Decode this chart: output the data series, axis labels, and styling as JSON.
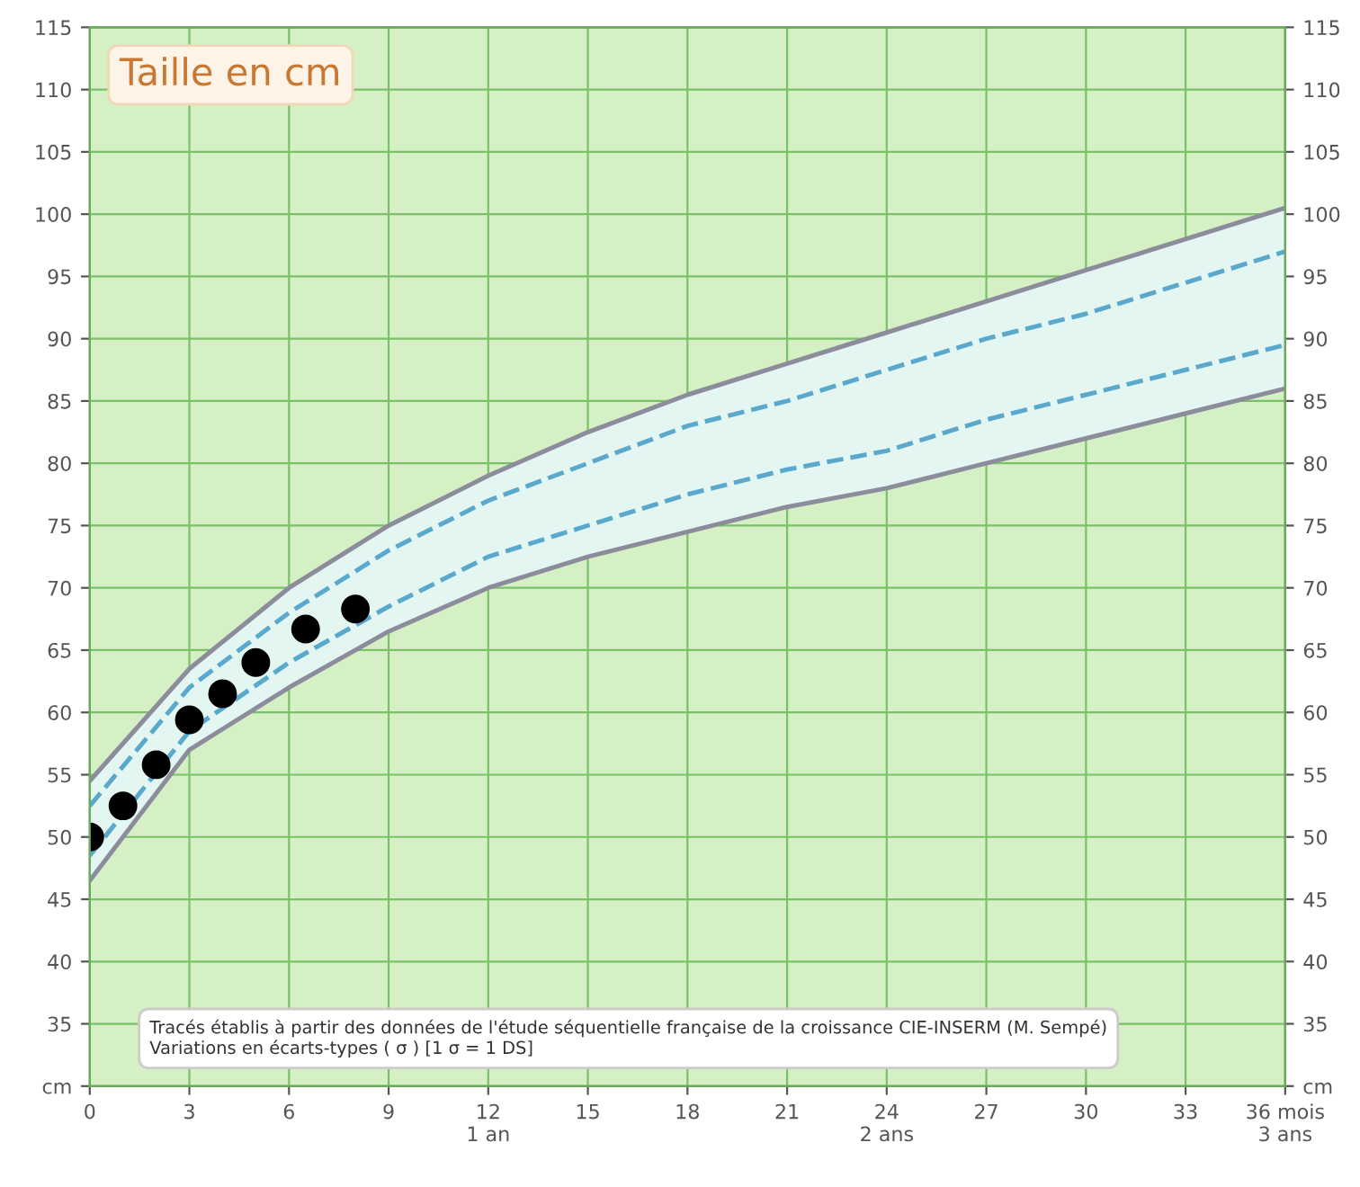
{
  "chart_data": {
    "type": "line",
    "title": "Taille en cm",
    "xlim": [
      0,
      36
    ],
    "xticks": [
      0,
      3,
      6,
      9,
      {
        "value": 12,
        "label": "12\n1 an"
      },
      15,
      18,
      21,
      {
        "value": 24,
        "label": "24\n2 ans"
      },
      27,
      30,
      33,
      {
        "value": 36,
        "label": "36 mois\n3 ans"
      }
    ],
    "ylim": [
      30,
      115
    ],
    "yticks": [
      {
        "value": 30,
        "label": "cm"
      },
      35,
      40,
      45,
      50,
      55,
      60,
      65,
      70,
      75,
      80,
      85,
      90,
      95,
      100,
      105,
      110,
      115
    ],
    "y2lim": [
      30,
      115
    ],
    "y2ticks": [
      {
        "value": 30,
        "label": "cm"
      },
      35,
      40,
      45,
      50,
      55,
      60,
      65,
      70,
      75,
      80,
      85,
      90,
      95,
      100,
      105,
      110,
      115
    ],
    "grid": true,
    "legend": false,
    "annotations": [
      "Tracés établis à partir des données de l'étude séquentielle française de la croissance CIE-INSERM (M. Sempé)\nVariations en écarts-types ( σ ) [1 σ = 1 DS]"
    ],
    "series": [
      {
        "line_style": "solid",
        "color": "#8c8c9c",
        "x": [
          0,
          3,
          6,
          9,
          12,
          15,
          18,
          21,
          24,
          27,
          30,
          33,
          36
        ],
        "values": [
          54.5,
          63.5,
          70,
          75,
          79,
          82.5,
          85.5,
          88,
          90.5,
          93,
          95.5,
          98,
          100.5
        ]
      },
      {
        "line_style": "solid",
        "color": "#8c8c9c",
        "x": [
          0,
          3,
          6,
          9,
          12,
          15,
          18,
          21,
          24,
          27,
          30,
          33,
          36
        ],
        "values": [
          46.5,
          57,
          62,
          66.5,
          70,
          72.5,
          74.5,
          76.5,
          78,
          80,
          82,
          84,
          86
        ]
      },
      {
        "line_style": "dashed",
        "color": "#5aa8cc",
        "x": [
          0,
          3,
          6,
          9,
          12,
          15,
          18,
          21,
          24,
          27,
          30,
          33,
          36
        ],
        "values": [
          52.5,
          62,
          68,
          73,
          77,
          80,
          83,
          85,
          87.5,
          90,
          92,
          94.5,
          97
        ],
        "lower": [
          46.5,
          57,
          62,
          66.5,
          70,
          72.5,
          74.5,
          76.5,
          78,
          80,
          82,
          84,
          86
        ],
        "upper": [
          54.5,
          63.5,
          70,
          75,
          79,
          82.5,
          85.5,
          88,
          90.5,
          93,
          95.5,
          98,
          100.5
        ]
      },
      {
        "line_style": "dashed",
        "color": "#5aa8cc",
        "x": [
          0,
          3,
          6,
          9,
          12,
          15,
          18,
          21,
          24,
          27,
          30,
          33,
          36
        ],
        "values": [
          48.5,
          58.5,
          64,
          68.5,
          72.5,
          75,
          77.5,
          79.5,
          81,
          83.5,
          85.5,
          87.5,
          89.5
        ]
      },
      {
        "type": "scatter",
        "marker": "circle",
        "color": "#000000",
        "x": [
          0,
          1,
          2,
          3,
          4,
          5,
          6.5,
          8
        ],
        "values": [
          50,
          52.5,
          55.8,
          59.4,
          61.5,
          64,
          66.7,
          68.3
        ]
      }
    ]
  }
}
